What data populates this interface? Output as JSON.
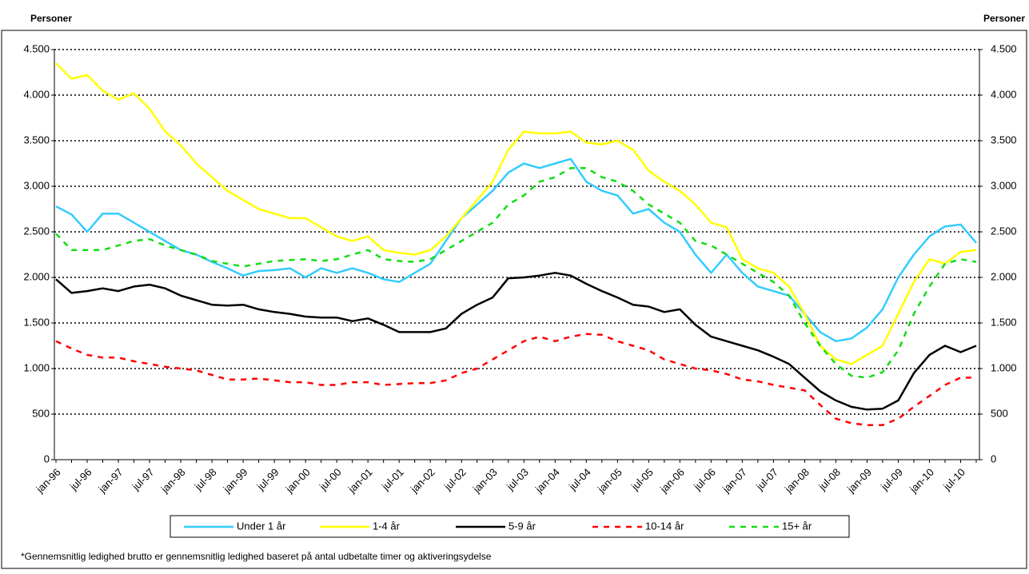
{
  "chart_data": {
    "type": "line",
    "y_label": "Personer",
    "y2_label": "Personer",
    "footnote": "*Gennemsnitlig ledighed brutto er gennemsnitlig ledighed baseret på antal udbetalte timer og aktiveringsydelse",
    "categories": [
      "jan-96",
      null,
      "jul-96",
      null,
      "jan-97",
      null,
      "jul-97",
      null,
      "jan-98",
      null,
      "jul-98",
      null,
      "jan-99",
      null,
      "jul-99",
      null,
      "jan-00",
      null,
      "jul-00",
      null,
      "jan-01",
      null,
      "jul-01",
      null,
      "jan-02",
      null,
      "jul-02",
      null,
      "jan-03",
      null,
      "jul-03",
      null,
      "jan-04",
      null,
      "jul-04",
      null,
      "jan-05",
      null,
      "jul-05",
      null,
      "jan-06",
      null,
      "jul-06",
      null,
      "jan-07",
      null,
      "jul-07",
      null,
      "jan-08",
      null,
      "jul-08",
      null,
      "jan-09",
      null,
      "jul-09",
      null,
      "jan-10",
      null,
      "jul-10",
      null
    ],
    "ylim": [
      0,
      4500
    ],
    "yticks": [
      0,
      {
        "value": 500,
        "label": "500"
      },
      {
        "value": 1000,
        "label": "1.000"
      },
      {
        "value": 1500,
        "label": "1.500"
      },
      {
        "value": 2000,
        "label": "2.000"
      },
      {
        "value": 2500,
        "label": "2.500"
      },
      {
        "value": 3000,
        "label": "3.000"
      },
      {
        "value": 3500,
        "label": "3.500"
      },
      {
        "value": 4000,
        "label": "4.000"
      },
      {
        "value": 4500,
        "label": "4.500"
      }
    ],
    "y2lim": [
      0,
      4500
    ],
    "y2ticks": [
      0,
      {
        "value": 500,
        "label": "500"
      },
      {
        "value": 1000,
        "label": "1.000"
      },
      {
        "value": 1500,
        "label": "1.500"
      },
      {
        "value": 2000,
        "label": "2.000"
      },
      {
        "value": 2500,
        "label": "2.500"
      },
      {
        "value": 3000,
        "label": "3.000"
      },
      {
        "value": 3500,
        "label": "3.500"
      },
      {
        "value": 4000,
        "label": "4.000"
      },
      {
        "value": 4500,
        "label": "4.500"
      }
    ],
    "grid": true,
    "legend": "bottom",
    "series": [
      {
        "name": "Under 1 år",
        "color": "#33ccff",
        "dashed": false,
        "values": [
          2780,
          2690,
          2500,
          2700,
          2700,
          2600,
          2500,
          2400,
          2300,
          2250,
          2170,
          2100,
          2020,
          2070,
          2080,
          2100,
          2000,
          2100,
          2050,
          2100,
          2050,
          1980,
          1950,
          2050,
          2150,
          2400,
          2650,
          2800,
          2950,
          3150,
          3250,
          3200,
          3250,
          3300,
          3050,
          2950,
          2900,
          2700,
          2750,
          2600,
          2500,
          2250,
          2050,
          2250,
          2050,
          1900,
          1850,
          1800,
          1600,
          1400,
          1300,
          1330,
          1450,
          1650,
          2000,
          2250,
          2450,
          2560,
          2580,
          2380
        ]
      },
      {
        "name": "1-4 år",
        "color": "#ffff00",
        "dashed": false,
        "values": [
          4350,
          4180,
          4220,
          4050,
          3950,
          4020,
          3850,
          3600,
          3450,
          3250,
          3100,
          2950,
          2850,
          2750,
          2700,
          2650,
          2650,
          2550,
          2450,
          2400,
          2450,
          2300,
          2270,
          2250,
          2300,
          2450,
          2650,
          2850,
          3050,
          3400,
          3600,
          3580,
          3580,
          3600,
          3480,
          3460,
          3500,
          3400,
          3170,
          3050,
          2950,
          2800,
          2600,
          2550,
          2200,
          2100,
          2050,
          1900,
          1600,
          1250,
          1100,
          1050,
          1150,
          1250,
          1600,
          1950,
          2200,
          2150,
          2280,
          2300
        ]
      },
      {
        "name": "5-9 år",
        "color": "#000000",
        "dashed": false,
        "values": [
          1980,
          1830,
          1850,
          1880,
          1850,
          1900,
          1920,
          1880,
          1800,
          1750,
          1700,
          1690,
          1700,
          1650,
          1620,
          1600,
          1570,
          1560,
          1560,
          1520,
          1550,
          1480,
          1400,
          1400,
          1400,
          1440,
          1600,
          1700,
          1780,
          1990,
          2000,
          2020,
          2050,
          2020,
          1930,
          1850,
          1780,
          1700,
          1680,
          1620,
          1650,
          1480,
          1350,
          1300,
          1250,
          1200,
          1130,
          1050,
          900,
          750,
          650,
          580,
          550,
          560,
          650,
          950,
          1150,
          1250,
          1180,
          1250
        ]
      },
      {
        "name": "10-14 år",
        "color": "#ff0000",
        "dashed": true,
        "values": [
          1300,
          1220,
          1150,
          1120,
          1120,
          1080,
          1050,
          1020,
          1000,
          980,
          930,
          880,
          880,
          890,
          870,
          850,
          850,
          820,
          820,
          850,
          850,
          820,
          830,
          840,
          840,
          870,
          950,
          1000,
          1100,
          1200,
          1300,
          1350,
          1300,
          1350,
          1380,
          1370,
          1300,
          1250,
          1200,
          1100,
          1050,
          1000,
          980,
          940,
          880,
          860,
          820,
          790,
          760,
          600,
          450,
          400,
          380,
          380,
          450,
          580,
          700,
          820,
          900,
          900
        ]
      },
      {
        "name": "15+ år",
        "color": "#11dd11",
        "dashed": true,
        "values": [
          2480,
          2300,
          2300,
          2300,
          2350,
          2400,
          2420,
          2350,
          2300,
          2250,
          2180,
          2150,
          2120,
          2150,
          2180,
          2190,
          2200,
          2180,
          2200,
          2250,
          2300,
          2200,
          2180,
          2170,
          2200,
          2300,
          2400,
          2500,
          2600,
          2800,
          2900,
          3050,
          3100,
          3200,
          3200,
          3100,
          3050,
          2950,
          2800,
          2700,
          2600,
          2400,
          2350,
          2250,
          2150,
          2050,
          1950,
          1800,
          1500,
          1250,
          1050,
          920,
          900,
          960,
          1200,
          1600,
          1900,
          2150,
          2200,
          2170
        ]
      }
    ]
  }
}
